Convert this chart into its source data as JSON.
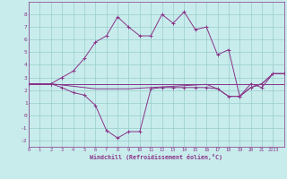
{
  "xlabel": "Windchill (Refroidissement éolien,°C)",
  "bg_color": "#c8ecec",
  "line_color": "#883388",
  "grid_color": "#99cccc",
  "xlim": [
    0,
    23
  ],
  "ylim": [
    -2.5,
    9.0
  ],
  "xtick_labels": [
    "0",
    "1",
    "2",
    "3",
    "4",
    "5",
    "6",
    "7",
    "8",
    "9",
    "10",
    "11",
    "12",
    "13",
    "14",
    "15",
    "16",
    "17",
    "18",
    "19",
    "20",
    "21",
    "2223"
  ],
  "xtick_pos": [
    0,
    1,
    2,
    3,
    4,
    5,
    6,
    7,
    8,
    9,
    10,
    11,
    12,
    13,
    14,
    15,
    16,
    17,
    18,
    19,
    20,
    21,
    22
  ],
  "yticks": [
    -2,
    -1,
    0,
    1,
    2,
    3,
    4,
    5,
    6,
    7,
    8
  ],
  "series": [
    {
      "x": [
        0,
        23
      ],
      "y": [
        2.5,
        2.5
      ],
      "marker": null
    },
    {
      "x": [
        0,
        2,
        3,
        4,
        5,
        6,
        7,
        8,
        9,
        10,
        11,
        12,
        13,
        14,
        15,
        16,
        17,
        18,
        19,
        20,
        21,
        22,
        23
      ],
      "y": [
        2.5,
        2.5,
        2.4,
        2.3,
        2.2,
        2.1,
        2.1,
        2.1,
        2.1,
        2.15,
        2.2,
        2.25,
        2.3,
        2.35,
        2.4,
        2.45,
        2.1,
        1.5,
        1.5,
        2.2,
        2.5,
        3.3,
        3.3
      ],
      "marker": null
    },
    {
      "x": [
        0,
        2,
        3,
        4,
        5,
        6,
        7,
        8,
        9,
        10,
        11,
        12,
        13,
        14,
        15,
        16,
        17,
        18,
        19,
        20,
        21,
        22,
        23
      ],
      "y": [
        2.5,
        2.5,
        2.2,
        1.8,
        1.6,
        0.8,
        -1.2,
        -1.8,
        -1.3,
        -1.3,
        2.1,
        2.2,
        2.2,
        2.2,
        2.2,
        2.2,
        2.1,
        1.5,
        1.5,
        2.2,
        2.5,
        3.3,
        3.3
      ],
      "marker": "+"
    },
    {
      "x": [
        0,
        2,
        3,
        4,
        5,
        6,
        7,
        8,
        9,
        10,
        11,
        12,
        13,
        14,
        15,
        16,
        17,
        18,
        19,
        20,
        21,
        22,
        23
      ],
      "y": [
        2.5,
        2.5,
        3.0,
        3.5,
        4.5,
        5.8,
        6.3,
        7.8,
        7.0,
        6.3,
        6.3,
        8.0,
        7.3,
        8.2,
        6.8,
        7.0,
        4.8,
        5.2,
        1.5,
        2.5,
        2.2,
        3.3,
        3.3
      ],
      "marker": "+"
    }
  ]
}
